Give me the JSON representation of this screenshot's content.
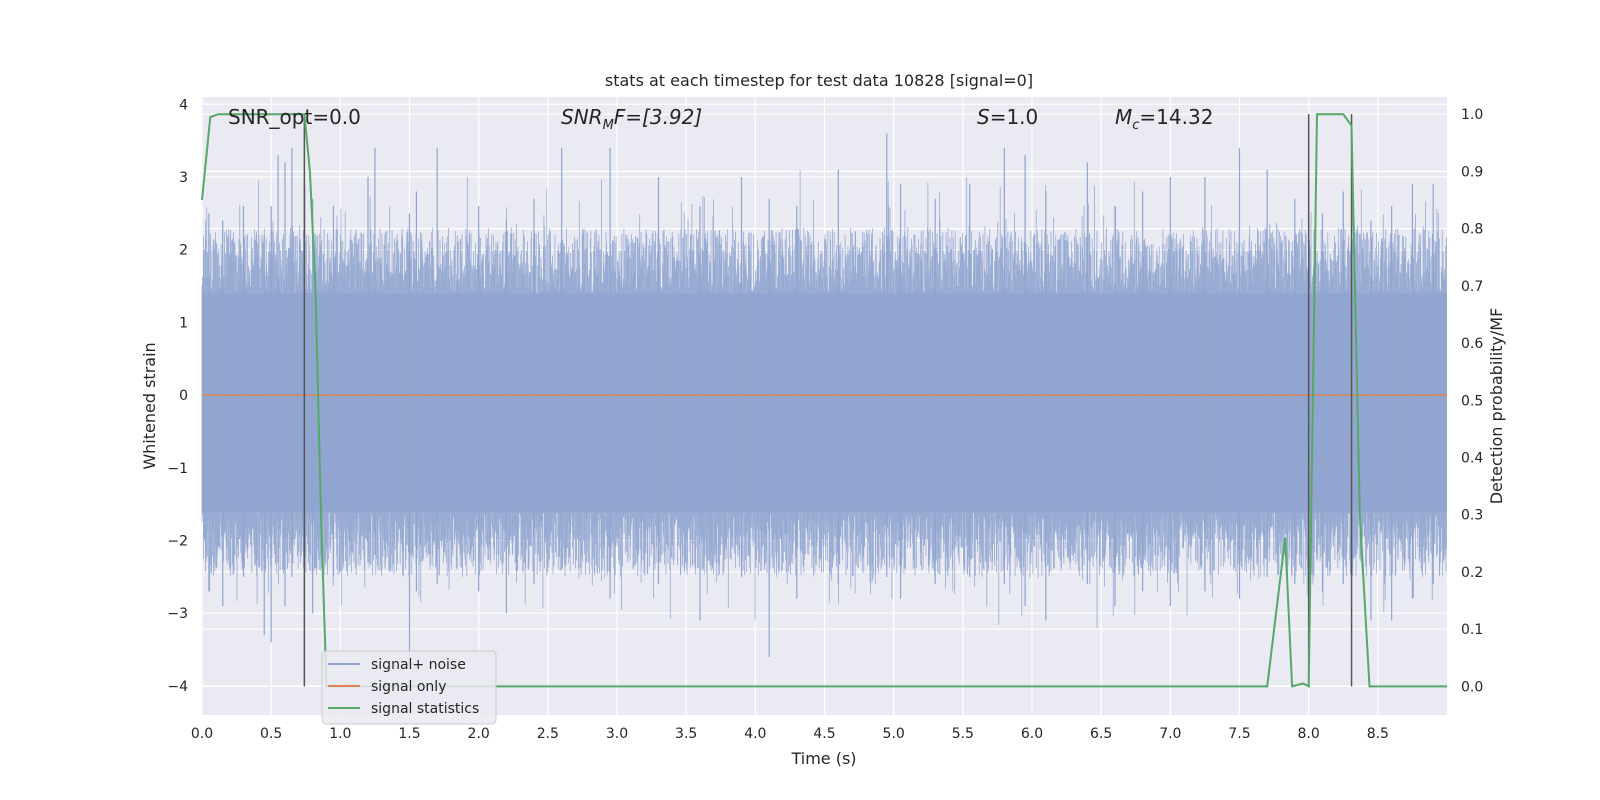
{
  "chart_data": {
    "type": "line",
    "title": "stats at each timestep for test data 10828 [signal=0]",
    "xlabel": "Time (s)",
    "ylabel_left": "Whitened strain",
    "ylabel_right": "Detection probability/MF",
    "xlim": [
      0.0,
      9.0
    ],
    "ylim_left": [
      -4.4,
      4.1
    ],
    "ylim_right": [
      -0.05,
      1.03
    ],
    "xticks": [
      "0.0",
      "0.5",
      "1.0",
      "1.5",
      "2.0",
      "2.5",
      "3.0",
      "3.5",
      "4.0",
      "4.5",
      "5.0",
      "5.5",
      "6.0",
      "6.5",
      "7.0",
      "7.5",
      "8.0",
      "8.5"
    ],
    "yticks_left": [
      "4",
      "3",
      "2",
      "1",
      "0",
      "−1",
      "−2",
      "−3",
      "−4"
    ],
    "yticks_right": [
      "1.0",
      "0.9",
      "0.8",
      "0.7",
      "0.6",
      "0.5",
      "0.4",
      "0.3",
      "0.2",
      "0.1",
      "0.0"
    ],
    "grid": true,
    "legend_position": "lower-left",
    "annotations": {
      "snr_opt": "SNR_opt=0.0",
      "snr_mf_italic": "SNR",
      "snr_mf_sub": "M",
      "snr_mf_rest": "F=[3.92]",
      "s_italic": "S",
      "s_rest": "=1.0",
      "mc_italic": "M",
      "mc_sub": "c",
      "mc_rest": "=14.32"
    },
    "vertical_markers_x": [
      0.74,
      8.0,
      8.31
    ],
    "series": [
      {
        "name": "signal+ noise",
        "color": "#8fa4cf",
        "axis": "left",
        "note_envelope": "noise",
        "spike_samples": [
          [
            0.05,
            2.5,
            -2.7
          ],
          [
            0.15,
            2.4,
            -2.9
          ],
          [
            0.3,
            2.6,
            -2.5
          ],
          [
            0.45,
            2.2,
            -3.3
          ],
          [
            0.5,
            2.6,
            -3.4
          ],
          [
            0.55,
            3.3,
            -2.3
          ],
          [
            0.6,
            3.2,
            -2.9
          ],
          [
            0.65,
            3.4,
            -2.5
          ],
          [
            0.8,
            2.7,
            -3.0
          ],
          [
            0.95,
            2.6,
            -2.5
          ],
          [
            1.2,
            3.0,
            -2.3
          ],
          [
            1.25,
            3.4,
            -2.2
          ],
          [
            1.5,
            2.5,
            -3.6
          ],
          [
            1.55,
            2.8,
            -2.7
          ],
          [
            1.7,
            3.4,
            -2.6
          ],
          [
            2.0,
            2.6,
            -2.7
          ],
          [
            2.2,
            2.4,
            -3.0
          ],
          [
            2.4,
            2.7,
            -2.6
          ],
          [
            2.6,
            3.4,
            -2.4
          ],
          [
            2.95,
            3.4,
            -2.8
          ],
          [
            3.3,
            3.0,
            -2.6
          ],
          [
            3.6,
            2.6,
            -3.1
          ],
          [
            3.9,
            3.0,
            -2.5
          ],
          [
            4.1,
            2.7,
            -3.6
          ],
          [
            4.3,
            2.6,
            -2.8
          ],
          [
            4.6,
            3.1,
            -2.6
          ],
          [
            4.95,
            3.6,
            -2.5
          ],
          [
            5.05,
            2.9,
            -2.8
          ],
          [
            5.3,
            2.7,
            -2.6
          ],
          [
            5.55,
            2.9,
            -2.5
          ],
          [
            5.8,
            3.4,
            -2.6
          ],
          [
            5.95,
            3.3,
            -2.9
          ],
          [
            6.1,
            2.8,
            -3.1
          ],
          [
            6.4,
            3.2,
            -2.6
          ],
          [
            6.6,
            2.6,
            -2.9
          ],
          [
            6.8,
            2.8,
            -2.7
          ],
          [
            7.0,
            3.0,
            -2.9
          ],
          [
            7.25,
            3.0,
            -2.7
          ],
          [
            7.5,
            3.4,
            -2.8
          ],
          [
            7.7,
            3.1,
            -2.5
          ],
          [
            7.9,
            2.7,
            -2.6
          ],
          [
            8.1,
            2.5,
            -2.7
          ],
          [
            8.25,
            2.8,
            -2.6
          ],
          [
            8.45,
            2.4,
            -3.1
          ],
          [
            8.6,
            2.6,
            -3.1
          ],
          [
            8.75,
            2.9,
            -2.8
          ],
          [
            8.9,
            2.9,
            -2.6
          ]
        ]
      },
      {
        "name": "signal only",
        "color": "#dd8452",
        "axis": "left",
        "x": [
          0.0,
          9.0
        ],
        "y": [
          0.0,
          0.0
        ]
      },
      {
        "name": "signal statistics",
        "color": "#55a868",
        "axis": "right",
        "x": [
          0.0,
          0.06,
          0.12,
          0.2,
          0.3,
          0.4,
          0.5,
          0.6,
          0.7,
          0.74,
          0.78,
          0.82,
          0.86,
          0.9,
          1.0,
          2.0,
          3.0,
          4.0,
          5.0,
          6.0,
          7.0,
          7.5,
          7.7,
          7.83,
          7.88,
          7.96,
          8.0,
          8.06,
          8.15,
          8.25,
          8.31,
          8.37,
          8.44,
          8.5,
          9.0
        ],
        "y": [
          0.85,
          0.995,
          1.0,
          1.0,
          1.0,
          1.0,
          1.0,
          1.0,
          1.0,
          1.0,
          0.9,
          0.7,
          0.3,
          0.0,
          0.0,
          0.0,
          0.0,
          0.0,
          0.0,
          0.0,
          0.0,
          0.0,
          0.0,
          0.26,
          0.0,
          0.005,
          0.0,
          1.0,
          1.0,
          1.0,
          0.98,
          0.3,
          0.0,
          0.0,
          0.0
        ]
      }
    ]
  }
}
